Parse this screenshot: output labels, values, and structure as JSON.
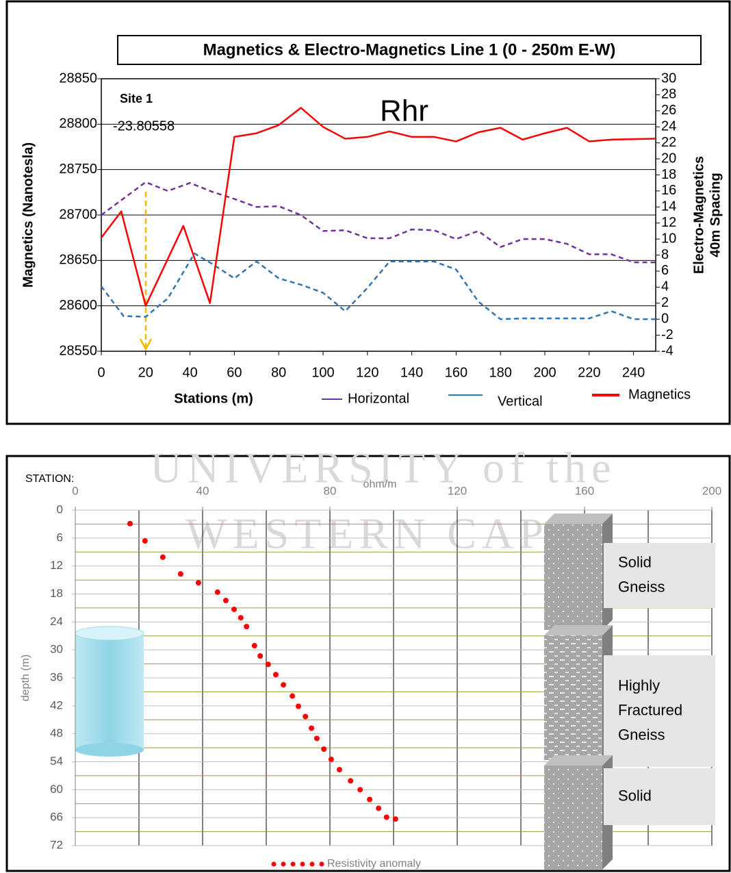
{
  "chart_data": [
    {
      "type": "line",
      "title": "Magnetics & Electro-Magnetics Line 1  (0 - 250m E-W)",
      "xlabel": "Stations (m)",
      "ylabel": "Magnetics (Nanotesla)",
      "y2label": [
        "Electro-Magnetics",
        "40m Spacing"
      ],
      "annotations": [
        "Site 1",
        "-23.80558",
        "Rhr"
      ],
      "xlim": [
        0,
        250
      ],
      "xticks": [
        0,
        20,
        40,
        60,
        80,
        100,
        120,
        140,
        160,
        180,
        200,
        220,
        240
      ],
      "ylim": [
        28550,
        28850
      ],
      "yticks": [
        28550,
        28600,
        28650,
        28700,
        28750,
        28800,
        28850
      ],
      "y2lim": [
        -4,
        30
      ],
      "y2ticks": [
        -4,
        -2,
        0,
        2,
        4,
        6,
        8,
        10,
        12,
        14,
        16,
        18,
        20,
        22,
        24,
        26,
        28,
        30
      ],
      "grid": true,
      "series": [
        {
          "name": "Horizontal",
          "color": "#7030a0",
          "dashed": true,
          "axis": "y2",
          "x": [
            0,
            20,
            30,
            40,
            50,
            60,
            70,
            80,
            90,
            100,
            110,
            120,
            130,
            140,
            150,
            160,
            170,
            180,
            190,
            200,
            210,
            220,
            230,
            240,
            250
          ],
          "values": [
            13,
            17.1,
            16,
            17,
            15.9,
            15,
            14,
            14.1,
            13,
            11,
            11.1,
            10.1,
            10.1,
            11.2,
            11.1,
            10,
            11,
            9,
            10,
            10,
            9.4,
            8.1,
            8.1,
            7.1,
            7.1
          ]
        },
        {
          "name": "Vertical",
          "color": "#2e75b6",
          "dashed": true,
          "axis": "y2",
          "x": [
            0,
            10,
            20,
            30,
            42,
            50,
            60,
            70,
            80,
            90,
            100,
            110,
            120,
            130,
            140,
            150,
            160,
            170,
            180,
            190,
            200,
            210,
            220,
            230,
            240,
            250
          ],
          "values": [
            4.1,
            0.4,
            0.3,
            2.6,
            8.2,
            6.9,
            5.1,
            7.2,
            5.1,
            4.3,
            3.3,
            1,
            3.9,
            7.2,
            7.2,
            7.2,
            6.2,
            2.2,
            0,
            0.1,
            0.1,
            0.1,
            0.1,
            1,
            0,
            0
          ]
        },
        {
          "name": "Magnetics",
          "color": "#ff0000",
          "dashed": false,
          "x": [
            0,
            9,
            20,
            37,
            49,
            60,
            70,
            80,
            90,
            100,
            110,
            120,
            130,
            140,
            150,
            160,
            170,
            180,
            190,
            200,
            210,
            220,
            230,
            250
          ],
          "values": [
            28675,
            28704,
            28600,
            28688,
            28603,
            28786,
            28790,
            28799,
            28818,
            28797,
            28784,
            28786,
            28792,
            28786,
            28786,
            28781,
            28791,
            28796,
            28783,
            28790,
            28796,
            28781,
            28783,
            28784
          ]
        }
      ]
    },
    {
      "type": "scatter",
      "label": "STATION:",
      "xlabel": "ohm/m",
      "ylabel": "depth (m)",
      "xlim": [
        0,
        200
      ],
      "xticks": [
        0,
        40,
        80,
        120,
        160,
        200
      ],
      "xgrid": [
        0,
        20,
        40,
        60,
        80,
        100,
        120,
        140,
        160,
        180,
        200
      ],
      "ylim": [
        0,
        72
      ],
      "y_inverted": true,
      "yticks": [
        0,
        6,
        12,
        18,
        24,
        30,
        36,
        42,
        48,
        54,
        60,
        66,
        72
      ],
      "minor_yticks": [
        3,
        9,
        15,
        21,
        27,
        33,
        39,
        45,
        51,
        57,
        63,
        69
      ],
      "series": [
        {
          "name": "Resistivity anomaly",
          "color": "#ff0000",
          "x": [
            17.2,
            21.9,
            27.5,
            33.1,
            38.7,
            44.7,
            47.3,
            49.9,
            52.0,
            53.8,
            56.3,
            58.1,
            60.6,
            63.0,
            65.4,
            68.2,
            70.1,
            72.3,
            74.2,
            75.9,
            78.1,
            80.4,
            83.0,
            86.5,
            89.5,
            92.5,
            95.3,
            97.8,
            100.6
          ],
          "values": [
            2.9,
            6.6,
            10.1,
            13.7,
            15.6,
            17.6,
            19.4,
            21.3,
            23.1,
            25.0,
            29.1,
            31.3,
            33.1,
            35.3,
            37.5,
            39.9,
            42.1,
            44.3,
            46.8,
            49.0,
            51.3,
            53.5,
            55.7,
            58.1,
            60.0,
            62.1,
            64.0,
            65.9,
            66.3
          ]
        }
      ],
      "layers": [
        {
          "label": [
            "Solid",
            "Gneiss"
          ]
        },
        {
          "label": [
            "Highly",
            "Fractured",
            "Gneiss"
          ]
        },
        {
          "label": [
            "Solid"
          ]
        }
      ],
      "watermark": [
        "UNIVERSITY of the",
        "WESTERN CAPE"
      ]
    }
  ]
}
